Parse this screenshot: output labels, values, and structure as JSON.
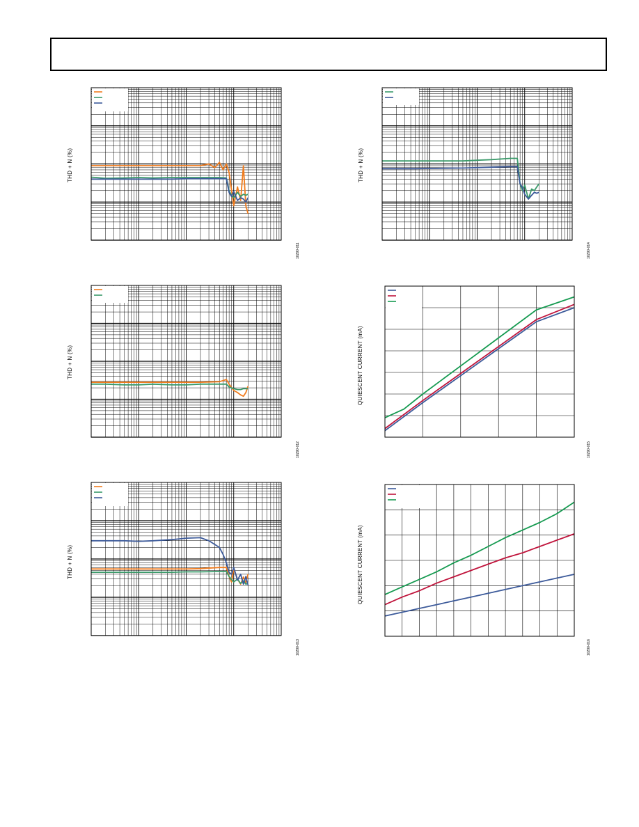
{
  "chart_data": [
    {
      "id": "thd-freq-1",
      "type": "line",
      "ylabel": "THD + N (%)",
      "figure_id": "10290-011",
      "log_x": true,
      "log_y": true,
      "grid": true,
      "legend_position": "top-left",
      "xlim": [
        10,
        100000
      ],
      "ylim": [
        0.0001,
        1
      ],
      "series": [
        {
          "color": "#f07c1e",
          "x": [
            10,
            20,
            50,
            100,
            200,
            500,
            1000,
            2000,
            3000,
            4000,
            5000,
            6000,
            7000,
            8000,
            10000,
            12000,
            14000,
            16000,
            18000,
            20000
          ],
          "y": [
            0.009,
            0.009,
            0.009,
            0.009,
            0.009,
            0.009,
            0.009,
            0.009,
            0.01,
            0.008,
            0.011,
            0.007,
            0.01,
            0.006,
            0.0008,
            0.0025,
            0.0011,
            0.009,
            0.0008,
            0.0005
          ]
        },
        {
          "color": "#3a9a6a",
          "x": [
            10,
            20,
            50,
            100,
            200,
            500,
            1000,
            2000,
            5000,
            7000,
            8000,
            9000,
            10000,
            12000,
            14000,
            16000,
            18000,
            20000
          ],
          "y": [
            0.0045,
            0.0042,
            0.0043,
            0.0044,
            0.0043,
            0.0044,
            0.0044,
            0.0044,
            0.0044,
            0.0043,
            0.002,
            0.0015,
            0.0013,
            0.0018,
            0.0014,
            0.0016,
            0.0015,
            0.0016
          ]
        },
        {
          "color": "#3c5a9a",
          "x": [
            10,
            20,
            50,
            100,
            200,
            500,
            1000,
            2000,
            5000,
            7000,
            8000,
            9000,
            10000,
            12000,
            14000,
            16000,
            18000,
            20000
          ],
          "y": [
            0.004,
            0.004,
            0.004,
            0.004,
            0.004,
            0.004,
            0.0041,
            0.0041,
            0.0041,
            0.0041,
            0.0018,
            0.0014,
            0.0019,
            0.0011,
            0.0013,
            0.0012,
            0.001,
            0.0013
          ]
        }
      ]
    },
    {
      "id": "thd-freq-2",
      "type": "line",
      "ylabel": "THD + N (%)",
      "figure_id": "10290-012",
      "log_x": true,
      "log_y": true,
      "grid": true,
      "legend_position": "top-left",
      "xlim": [
        10,
        100000
      ],
      "ylim": [
        0.0001,
        1
      ],
      "series": [
        {
          "color": "#f07c1e",
          "x": [
            10,
            20,
            50,
            100,
            200,
            500,
            1000,
            2000,
            5000,
            7000,
            8000,
            10000,
            12000,
            14000,
            16000,
            18000,
            20000
          ],
          "y": [
            0.0028,
            0.0028,
            0.0028,
            0.0028,
            0.0028,
            0.0028,
            0.0028,
            0.0028,
            0.0029,
            0.0033,
            0.0025,
            0.0017,
            0.0015,
            0.0013,
            0.0012,
            0.0015,
            0.0022
          ]
        },
        {
          "color": "#3a9a6a",
          "x": [
            10,
            20,
            50,
            100,
            200,
            500,
            1000,
            2000,
            5000,
            7000,
            8000,
            10000,
            12000,
            14000,
            16000,
            18000,
            20000
          ],
          "y": [
            0.0025,
            0.0025,
            0.0024,
            0.0024,
            0.0025,
            0.0024,
            0.0024,
            0.0025,
            0.0025,
            0.0025,
            0.0021,
            0.0019,
            0.0018,
            0.0018,
            0.0019,
            0.0019,
            0.0019
          ]
        }
      ]
    },
    {
      "id": "thd-freq-3",
      "type": "line",
      "ylabel": "THD + N (%)",
      "figure_id": "10290-013",
      "log_x": true,
      "log_y": true,
      "grid": true,
      "legend_position": "top-left",
      "xlim": [
        10,
        100000
      ],
      "ylim": [
        0.0001,
        1
      ],
      "series": [
        {
          "color": "#f07c1e",
          "x": [
            10,
            20,
            50,
            100,
            200,
            500,
            1000,
            2000,
            5000,
            7000,
            8000,
            9000,
            10000,
            12000,
            14000,
            16000,
            18000,
            20000
          ],
          "y": [
            0.0055,
            0.0055,
            0.0055,
            0.0055,
            0.0055,
            0.0055,
            0.0055,
            0.0056,
            0.006,
            0.006,
            0.0035,
            0.0025,
            0.0055,
            0.003,
            0.0022,
            0.0034,
            0.0024,
            0.004
          ]
        },
        {
          "color": "#3a9a6a",
          "x": [
            10,
            20,
            50,
            100,
            200,
            500,
            1000,
            2000,
            5000,
            7000,
            8000,
            10000,
            12000,
            14000,
            16000,
            18000,
            20000
          ],
          "y": [
            0.0045,
            0.0045,
            0.0045,
            0.0045,
            0.0045,
            0.0045,
            0.0046,
            0.0046,
            0.0047,
            0.0047,
            0.0035,
            0.0025,
            0.003,
            0.0023,
            0.0027,
            0.0022,
            0.0023
          ]
        },
        {
          "color": "#3c5a9a",
          "x": [
            10,
            20,
            50,
            100,
            200,
            500,
            1000,
            2000,
            3000,
            5000,
            6000,
            7000,
            8000,
            9000,
            10000,
            12000,
            14000,
            16000,
            18000,
            20000
          ],
          "y": [
            0.03,
            0.03,
            0.03,
            0.029,
            0.03,
            0.032,
            0.035,
            0.036,
            0.03,
            0.02,
            0.013,
            0.008,
            0.0045,
            0.004,
            0.006,
            0.0028,
            0.004,
            0.0022,
            0.0035,
            0.0021
          ]
        }
      ]
    },
    {
      "id": "thd-freq-4",
      "type": "line",
      "ylabel": "THD + N (%)",
      "figure_id": "10290-014",
      "log_x": true,
      "log_y": true,
      "grid": true,
      "legend_position": "top-left",
      "xlim": [
        10,
        100000
      ],
      "ylim": [
        0.0001,
        1
      ],
      "series": [
        {
          "color": "#3a9a6a",
          "x": [
            10,
            20,
            50,
            100,
            200,
            500,
            1000,
            2000,
            5000,
            7000,
            8000,
            9000,
            10000,
            12000,
            14000,
            16000,
            18000,
            20000
          ],
          "y": [
            0.012,
            0.012,
            0.012,
            0.012,
            0.012,
            0.012,
            0.0125,
            0.013,
            0.014,
            0.014,
            0.003,
            0.002,
            0.0028,
            0.0012,
            0.0022,
            0.002,
            0.0025,
            0.003
          ]
        },
        {
          "color": "#3c5a9a",
          "x": [
            10,
            20,
            50,
            100,
            200,
            500,
            1000,
            2000,
            5000,
            7000,
            8000,
            9000,
            10000,
            12000,
            14000,
            16000,
            18000,
            20000
          ],
          "y": [
            0.0075,
            0.0075,
            0.0075,
            0.0076,
            0.0077,
            0.0078,
            0.008,
            0.0082,
            0.0085,
            0.0085,
            0.003,
            0.0024,
            0.0016,
            0.0012,
            0.0015,
            0.0018,
            0.0017,
            0.0018
          ]
        }
      ]
    },
    {
      "id": "quiescent-1",
      "type": "line",
      "ylabel": "QUIESCENT CURRENT (mA)",
      "figure_id": "10290-015",
      "log_x": false,
      "log_y": false,
      "grid": true,
      "legend_position": "top-left",
      "xlim": [
        0,
        5
      ],
      "ylim": [
        0,
        7
      ],
      "series": [
        {
          "color": "#3c5a9a",
          "x": [
            0,
            1,
            2,
            3,
            4,
            5
          ],
          "y": [
            0.3,
            1.6,
            2.85,
            4.1,
            5.35,
            6.0
          ]
        },
        {
          "color": "#c0143c",
          "x": [
            0,
            1,
            2,
            3,
            4,
            5
          ],
          "y": [
            0.4,
            1.7,
            2.95,
            4.2,
            5.45,
            6.15
          ]
        },
        {
          "color": "#159a50",
          "x": [
            0,
            0.5,
            1,
            2,
            3,
            4,
            5
          ],
          "y": [
            0.9,
            1.3,
            2.0,
            3.3,
            4.6,
            5.9,
            6.5
          ]
        }
      ]
    },
    {
      "id": "quiescent-2",
      "type": "line",
      "ylabel": "QUIESCENT CURRENT (mA)",
      "figure_id": "10290-016",
      "log_x": false,
      "log_y": false,
      "grid": true,
      "legend_position": "top-left",
      "xlim": [
        0,
        11
      ],
      "ylim": [
        0,
        6
      ],
      "series": [
        {
          "color": "#3c5a9a",
          "x": [
            0,
            1,
            2,
            3,
            4,
            5,
            6,
            7,
            8,
            9,
            10,
            11
          ],
          "y": [
            0.8,
            0.95,
            1.1,
            1.25,
            1.4,
            1.55,
            1.7,
            1.85,
            2.0,
            2.15,
            2.3,
            2.45
          ]
        },
        {
          "color": "#c0143c",
          "x": [
            0,
            1,
            2,
            3,
            4,
            5,
            6,
            7,
            8,
            9,
            10,
            11
          ],
          "y": [
            1.25,
            1.55,
            1.8,
            2.1,
            2.35,
            2.6,
            2.85,
            3.1,
            3.3,
            3.55,
            3.8,
            4.05
          ]
        },
        {
          "color": "#159a50",
          "x": [
            0,
            1,
            2,
            3,
            4,
            5,
            6,
            7,
            8,
            9,
            10,
            11
          ],
          "y": [
            1.65,
            1.95,
            2.25,
            2.55,
            2.9,
            3.2,
            3.55,
            3.9,
            4.2,
            4.5,
            4.85,
            5.3
          ]
        }
      ]
    }
  ]
}
